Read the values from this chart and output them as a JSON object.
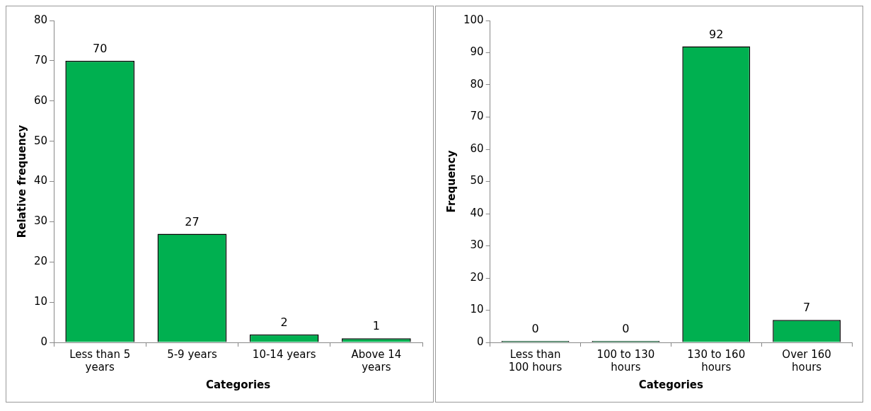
{
  "chart_data": [
    {
      "type": "bar",
      "categories": [
        "Less than 5 years",
        "5-9 years",
        "10-14 years",
        "Above 14 years"
      ],
      "values": [
        70,
        27,
        2,
        1
      ],
      "color": "#00b050",
      "ylim": [
        0,
        80
      ],
      "yticks": [
        0,
        10,
        20,
        30,
        40,
        50,
        60,
        70,
        80
      ],
      "xlabel": "Categories",
      "ylabel": "Relative frequency",
      "data_labels": true
    },
    {
      "type": "bar",
      "categories": [
        "Less than 100 hours",
        "100 to 130 hours",
        "130 to 160 hours",
        "Over 160 hours"
      ],
      "values": [
        0,
        0,
        92,
        7
      ],
      "color": "#00b050",
      "ylim": [
        0,
        100
      ],
      "yticks": [
        0,
        10,
        20,
        30,
        40,
        50,
        60,
        70,
        80,
        90,
        100
      ],
      "xlabel": "Categories",
      "ylabel": "Frequency",
      "data_labels": true
    }
  ]
}
